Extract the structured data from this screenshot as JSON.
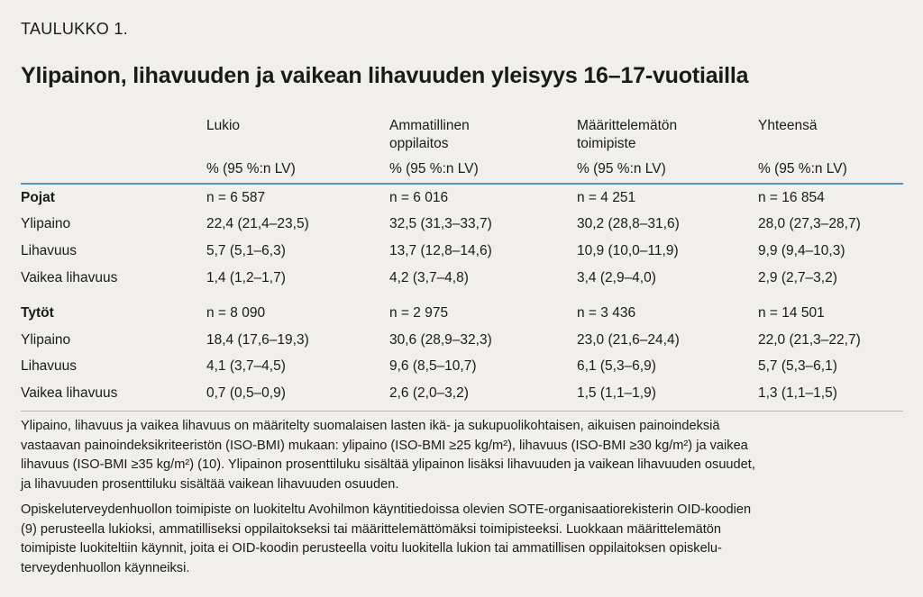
{
  "label": "TAULUKKO 1.",
  "title": "Ylipainon, lihavuuden ja vaikean lihavuuden yleisyys 16–17-vuotiailla",
  "columns": [
    {
      "line1": "Lukio",
      "line2": "",
      "unit": "% (95 %:n LV)"
    },
    {
      "line1": "Ammatillinen",
      "line2": "oppilaitos",
      "unit": "% (95 %:n LV)"
    },
    {
      "line1": "Määrittelemätön",
      "line2": "toimipiste",
      "unit": "% (95 %:n LV)"
    },
    {
      "line1": "Yhteensä",
      "line2": "",
      "unit": "% (95 %:n LV)"
    }
  ],
  "rows": [
    {
      "label": "Pojat",
      "bold": true,
      "values": [
        "n = 6 587",
        "n = 6 016",
        "n = 4 251",
        "n = 16 854"
      ]
    },
    {
      "label": "Ylipaino",
      "bold": false,
      "values": [
        "22,4 (21,4–23,5)",
        "32,5 (31,3–33,7)",
        "30,2 (28,8–31,6)",
        "28,0 (27,3–28,7)"
      ]
    },
    {
      "label": "Lihavuus",
      "bold": false,
      "values": [
        "5,7 (5,1–6,3)",
        "13,7 (12,8–14,6)",
        "10,9 (10,0–11,9)",
        "9,9 (9,4–10,3)"
      ]
    },
    {
      "label": "Vaikea lihavuus",
      "bold": false,
      "values": [
        "1,4 (1,2–1,7)",
        "4,2 (3,7–4,8)",
        "3,4 (2,9–4,0)",
        "2,9 (2,7–3,2)"
      ]
    },
    {
      "label": "Tytöt",
      "bold": true,
      "values": [
        "n = 8 090",
        "n = 2 975",
        "n = 3 436",
        "n = 14 501"
      ]
    },
    {
      "label": "Ylipaino",
      "bold": false,
      "values": [
        "18,4 (17,6–19,3)",
        "30,6 (28,9–32,3)",
        "23,0 (21,6–24,4)",
        "22,0 (21,3–22,7)"
      ]
    },
    {
      "label": "Lihavuus",
      "bold": false,
      "values": [
        "4,1 (3,7–4,5)",
        "9,6 (8,5–10,7)",
        "6,1 (5,3–6,9)",
        "5,7 (5,3–6,1)"
      ]
    },
    {
      "label": "Vaikea lihavuus",
      "bold": false,
      "values": [
        "0,7 (0,5–0,9)",
        "2,6 (2,0–3,2)",
        "1,5 (1,1–1,9)",
        "1,3 (1,1–1,5)"
      ]
    }
  ],
  "notes": {
    "p1": [
      "Ylipaino, lihavuus ja vaikea lihavuus on määritelty suomalaisen lasten ikä- ja sukupuolikohtaisen, aikuisen painoindeksiä",
      "vastaavan painoindeksikriteeristön (ISO-BMI) mukaan: ylipaino (ISO-BMI ≥25 kg/m²), lihavuus (ISO-BMI ≥30 kg/m²) ja vaikea",
      "lihavuus (ISO-BMI ≥35 kg/m²) (10). Ylipainon prosenttiluku sisältää ylipainon lisäksi lihavuuden ja vaikean lihavuuden osuudet,",
      "ja lihavuuden prosenttiluku sisältää vaikean lihavuuden osuuden."
    ],
    "p2": [
      "Opiskeluterveydenhuollon toimipiste on luokiteltu Avohilmon käyntitiedoissa olevien SOTE-organisaatiorekisterin OID-koodien",
      "(9) perusteella lukioksi, ammatilliseksi oppilaitokseksi tai määrittelemättömäksi toimipisteeksi. Luokkaan määrittelemätön",
      "toimipiste luokiteltiin käynnit, joita ei OID-koodin perusteella voitu luokitella lukion tai ammatillisen oppilaitoksen opiskelu-",
      "terveydenhuollon käynneiksi."
    ]
  },
  "colors": {
    "background": "#f1efec",
    "accent_rule": "#4c95cf",
    "text": "#1a1a1a"
  }
}
